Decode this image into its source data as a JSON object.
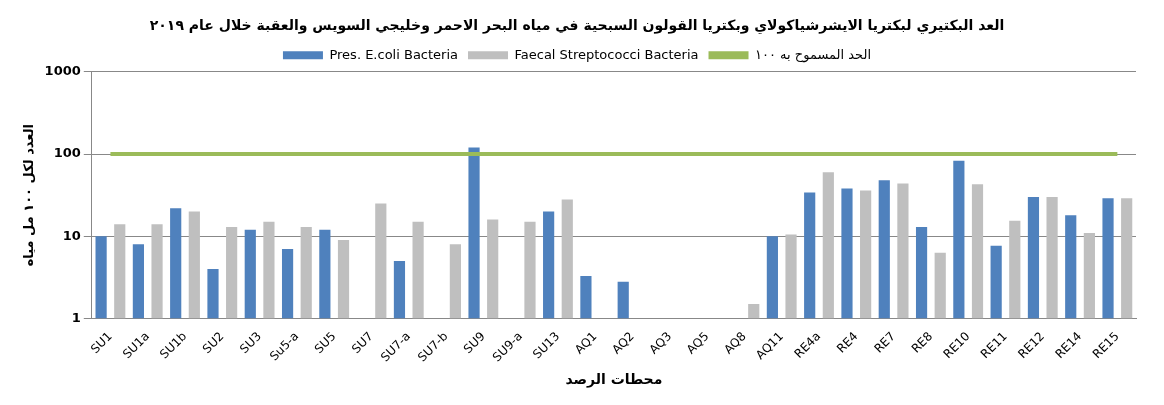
{
  "chart_data": {
    "type": "bar",
    "title": "العد البكتيري لبكتريا الايشرشياكولاي وبكتريا القولون السبحية في مياه البحر الاحمر وخليجي السويس والعقبة خلال عام ٢٠١٩",
    "xlabel": "محطات الرصد",
    "ylabel": "العدد لكل ١٠٠ مل مياه",
    "categories": [
      "SU1",
      "SU1a",
      "SU1b",
      "SU2",
      "SU3",
      "Su5-a",
      "SU5",
      "SU7",
      "SU7-a",
      "SU7-b",
      "SU9",
      "SU9-a",
      "SU13",
      "AQ1",
      "AQ2",
      "AQ3",
      "AQ5",
      "AQ8",
      "AQ11",
      "RE4a",
      "RE4",
      "RE7",
      "RE8",
      "RE10",
      "RE11",
      "RE12",
      "RE14",
      "RE15"
    ],
    "series": [
      {
        "name": "Pres. E.coli Bacteria",
        "color": "#4f81bd",
        "values": [
          10,
          8,
          22,
          4,
          12,
          7,
          12,
          null,
          5,
          null,
          120,
          null,
          20,
          3.3,
          2.8,
          null,
          null,
          null,
          10,
          34,
          38,
          48,
          13,
          83,
          7.7,
          30,
          18,
          29
        ]
      },
      {
        "name": "Faecal Streptococci Bacteria",
        "color": "#bfbfbf",
        "values": [
          14,
          14,
          20,
          13,
          15,
          13,
          9,
          25,
          15,
          8,
          16,
          15,
          28,
          null,
          null,
          null,
          null,
          1.5,
          10.5,
          60,
          36,
          44,
          6.3,
          43,
          15.5,
          30,
          11,
          29
        ]
      },
      {
        "name": "الحد المسموح به ١٠٠",
        "type": "line",
        "color": "#9bbb59",
        "values": [
          100,
          100,
          100,
          100,
          100,
          100,
          100,
          100,
          100,
          100,
          100,
          100,
          100,
          100,
          100,
          100,
          100,
          100,
          100,
          100,
          100,
          100,
          100,
          100,
          100,
          100,
          100,
          100
        ]
      }
    ],
    "log": "y",
    "ylim": [
      1,
      1000
    ],
    "yticks": [
      1,
      10,
      100,
      1000
    ],
    "grid": "y",
    "legend": "top",
    "marker": "none"
  }
}
